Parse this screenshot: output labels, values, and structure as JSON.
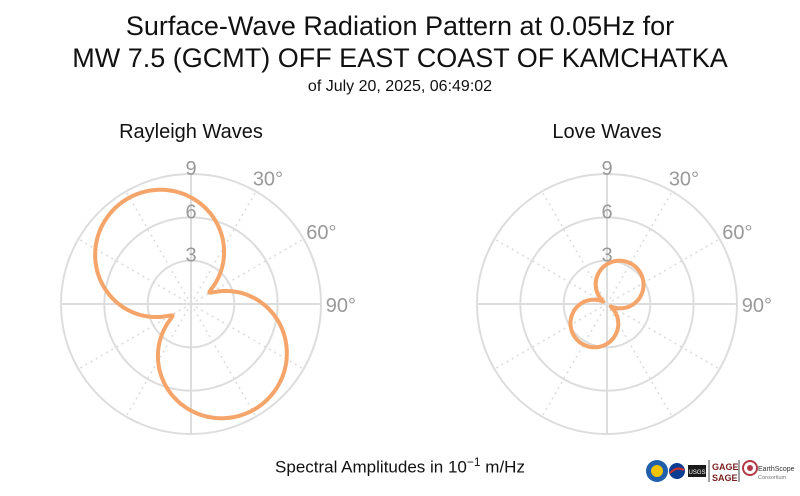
{
  "title": {
    "line1": "Surface-Wave Radiation Pattern at 0.05Hz for",
    "line2": "MW 7.5 (GCMT) OFF EAST COAST OF KAMCHATKA",
    "line3": "of July 20, 2025, 06:49:02"
  },
  "footer": {
    "label_prefix": "Spectral Amplitudes in 10",
    "label_exp": "−1",
    "label_unit": " m/Hz"
  },
  "logos": {
    "gage_line1": "GAGE",
    "gage_line2": "SAGE",
    "earthscope": "EarthScope",
    "earthscope_sub": "Consortium",
    "usgs": "USGS"
  },
  "colors": {
    "curve": "#F5A46A",
    "grid": "#dddddd",
    "label": "#999999"
  },
  "chart_data": [
    {
      "type": "polar",
      "title": "Rayleigh Waves",
      "radial_ticks": [
        3,
        6,
        9
      ],
      "rmax": 9,
      "angle_ticks": [
        "30°",
        "60°",
        "90°"
      ],
      "angle_tick_degrees": [
        30,
        60,
        90
      ],
      "grid_spoke_step_degrees": 30,
      "pattern": {
        "A": 7.5,
        "B": 0.5,
        "C": 1.0,
        "phi0": 148
      },
      "peak_lobes": [
        {
          "azimuth_deg": 148,
          "amplitude": 7.5
        },
        {
          "azimuth_deg": 328,
          "amplitude": 7.5
        }
      ],
      "node_azimuths_deg": [
        58,
        238
      ]
    },
    {
      "type": "polar",
      "title": "Love Waves",
      "radial_ticks": [
        3,
        6,
        9
      ],
      "rmax": 9,
      "angle_ticks": [
        "30°",
        "60°",
        "90°"
      ],
      "angle_tick_degrees": [
        30,
        60,
        90
      ],
      "grid_spoke_step_degrees": 30,
      "pattern": {
        "A": 3.1,
        "B": 0.15,
        "C": 0.15,
        "phi0": 33
      },
      "peak_lobes": [
        {
          "azimuth_deg": 33,
          "amplitude": 3.1
        },
        {
          "azimuth_deg": 213,
          "amplitude": 3.1
        }
      ],
      "node_azimuths_deg": [
        123,
        303
      ]
    }
  ]
}
